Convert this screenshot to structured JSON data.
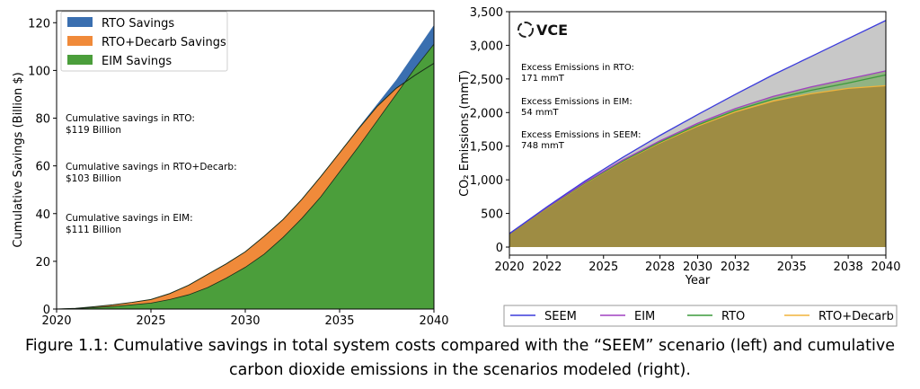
{
  "chart_data": [
    {
      "type": "area",
      "x": [
        2020,
        2021,
        2022,
        2023,
        2024,
        2025,
        2026,
        2027,
        2028,
        2029,
        2030,
        2031,
        2032,
        2033,
        2034,
        2035,
        2036,
        2037,
        2038,
        2039,
        2040
      ],
      "xticks": [
        2020,
        2025,
        2030,
        2035,
        2040
      ],
      "yticks": [
        0,
        20,
        40,
        60,
        80,
        100,
        120
      ],
      "xlim": [
        2020,
        2040
      ],
      "ylim": [
        0,
        125
      ],
      "xlabel": "",
      "ylabel": "Cumulative Savings (Billion $)",
      "legend_position": "top-left",
      "series": [
        {
          "name": "RTO Savings",
          "color": "#3a6fb0",
          "values": [
            0,
            0.3,
            0.9,
            1.7,
            2.6,
            3.6,
            5.8,
            9.0,
            13,
            18,
            23.5,
            30,
            37,
            45.5,
            55,
            65.5,
            76,
            86,
            96,
            107.5,
            119
          ]
        },
        {
          "name": "RTO+Decarb Savings",
          "color": "#f08a3a",
          "values": [
            0,
            0.3,
            1.0,
            1.8,
            2.8,
            4.0,
            6.5,
            10.0,
            14.5,
            19,
            24,
            30.5,
            37.5,
            46,
            55.5,
            65.5,
            75.5,
            85,
            92.5,
            98,
            103
          ]
        },
        {
          "name": "EIM Savings",
          "color": "#4b9e3b",
          "values": [
            0,
            0.2,
            0.6,
            1.1,
            1.8,
            2.5,
            4.0,
            6.0,
            9.0,
            13,
            17.5,
            23,
            30,
            38,
            47,
            57.5,
            68,
            79,
            90,
            101,
            111
          ]
        }
      ],
      "annotations": [
        {
          "line1": "Cumulative savings in RTO:",
          "line2": "$119 Billion"
        },
        {
          "line1": "Cumulative savings in RTO+Decarb:",
          "line2": "$103 Billion"
        },
        {
          "line1": "Cumulative savings in EIM:",
          "line2": "$111 Billion"
        }
      ]
    },
    {
      "type": "line",
      "x": [
        2020,
        2022,
        2024,
        2026,
        2028,
        2030,
        2032,
        2034,
        2036,
        2038,
        2040
      ],
      "xticks": [
        2020,
        2022,
        2025,
        2028,
        2030,
        2032,
        2035,
        2038,
        2040
      ],
      "yticks": [
        0,
        500,
        1000,
        1500,
        2000,
        2500,
        3000,
        3500
      ],
      "ytick_labels": [
        "0",
        "500",
        "1,000",
        "1,500",
        "2,000",
        "2,500",
        "3,000",
        "3,500"
      ],
      "xlim": [
        2020,
        2040
      ],
      "ylim": [
        -120,
        3500
      ],
      "xlabel": "Year",
      "ylabel": "CO₂ Emissions (mmT)",
      "logo_text": "VCE",
      "legend_position": "bottom",
      "fill_colors": {
        "gap": "#c8c8c8",
        "eim_gap": "#6e9a5a",
        "base": "#9e8c43"
      },
      "series": [
        {
          "name": "SEEM",
          "color": "#3c3cdc",
          "values": [
            200,
            600,
            980,
            1330,
            1660,
            1970,
            2270,
            2560,
            2830,
            3100,
            3370
          ]
        },
        {
          "name": "EIM",
          "color": "#a040c0",
          "values": [
            200,
            590,
            960,
            1290,
            1580,
            1840,
            2060,
            2240,
            2380,
            2500,
            2620
          ]
        },
        {
          "name": "RTO",
          "color": "#3c9a3c",
          "values": [
            200,
            585,
            950,
            1275,
            1560,
            1815,
            2030,
            2200,
            2330,
            2440,
            2560
          ]
        },
        {
          "name": "RTO+Decarb",
          "color": "#f0b43c",
          "values": [
            200,
            580,
            945,
            1270,
            1550,
            1800,
            2010,
            2170,
            2280,
            2360,
            2400
          ]
        }
      ],
      "annotations": [
        {
          "line1": "Excess Emissions in RTO:",
          "line2": "171 mmT"
        },
        {
          "line1": "Excess Emissions in EIM:",
          "line2": "54 mmT"
        },
        {
          "line1": "Excess Emissions in SEEM:",
          "line2": "748 mmT"
        }
      ]
    }
  ],
  "caption": {
    "line1": "Figure 1.1: Cumulative savings in total system costs compared with the “SEEM” scenario (left) and cumulative",
    "line2": "carbon dioxide emissions in the scenarios modeled (right)."
  }
}
